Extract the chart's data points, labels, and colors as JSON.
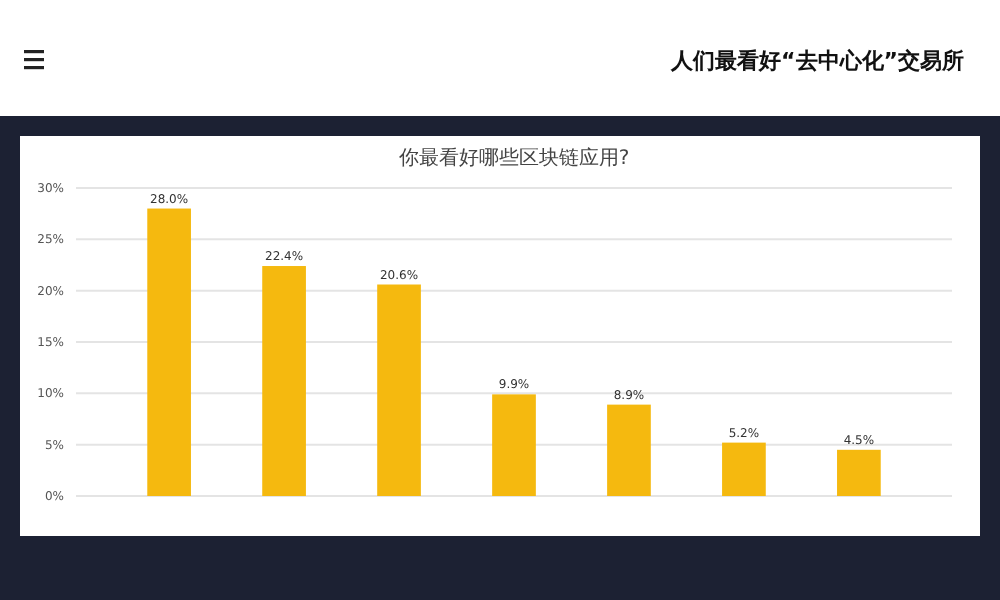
{
  "chart_data": {
    "type": "bar",
    "title": "你最看好哪些区块链应用?",
    "annotations": [
      "人们最看好“去中心化”交易所"
    ],
    "categories": [
      null,
      null,
      null,
      null,
      null,
      null,
      null
    ],
    "values": [
      28.0,
      22.4,
      20.6,
      9.9,
      8.9,
      5.2,
      4.5
    ],
    "value_labels": [
      "28.0%",
      "22.4%",
      "20.6%",
      "9.9%",
      "8.9%",
      "5.2%",
      "4.5%"
    ],
    "color": "#f5b90f",
    "ylim": [
      0,
      30
    ],
    "yticks": [
      {
        "value": 0,
        "label": "0%"
      },
      {
        "value": 5,
        "label": "5%"
      },
      {
        "value": 10,
        "label": "10%"
      },
      {
        "value": 15,
        "label": "15%"
      },
      {
        "value": 20,
        "label": "20%"
      },
      {
        "value": 25,
        "label": "25%"
      },
      {
        "value": 30,
        "label": "30%"
      }
    ],
    "grid": "y"
  }
}
